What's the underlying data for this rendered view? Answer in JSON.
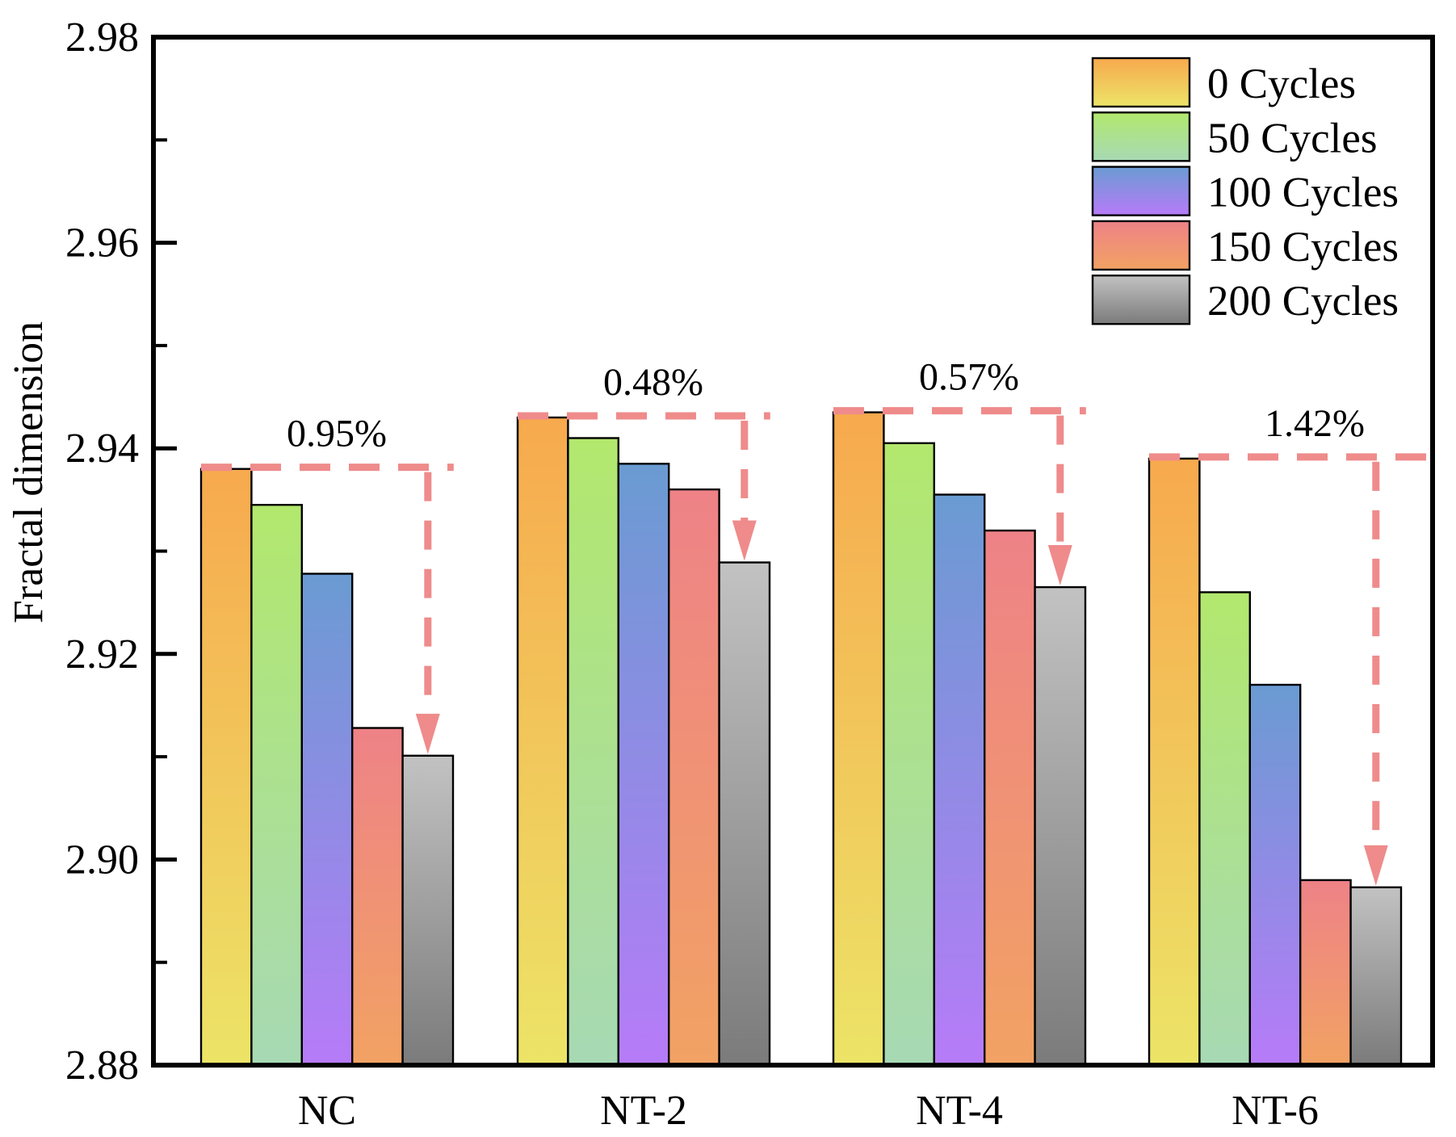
{
  "chart_data": {
    "type": "bar",
    "title": "",
    "xlabel": "",
    "ylabel": "Fractal dimension",
    "categories": [
      "NC",
      "NT-2",
      "NT-4",
      "NT-6"
    ],
    "series": [
      {
        "name": "0 Cycles",
        "color_top": "#f7a94e",
        "color_bottom": "#ece467",
        "values": [
          2.938,
          2.943,
          2.9435,
          2.939
        ]
      },
      {
        "name": "50 Cycles",
        "color_top": "#b2e86d",
        "color_bottom": "#a7d9b4",
        "values": [
          2.9345,
          2.941,
          2.9405,
          2.926
        ]
      },
      {
        "name": "100 Cycles",
        "color_top": "#6a9bd2",
        "color_bottom": "#b77bf8",
        "values": [
          2.9278,
          2.9385,
          2.9355,
          2.917
        ]
      },
      {
        "name": "150 Cycles",
        "color_top": "#ee8287",
        "color_bottom": "#f2a263",
        "values": [
          2.9128,
          2.936,
          2.932,
          2.898
        ]
      },
      {
        "name": "200 Cycles",
        "color_top": "#c2c2c2",
        "color_bottom": "#7b7b7b",
        "values": [
          2.9101,
          2.9289,
          2.9265,
          2.8973
        ]
      }
    ],
    "ylim": [
      2.88,
      2.98
    ],
    "ytick_step": 0.02,
    "ytick_minor_step": 0.01,
    "ytick_labels": [
      "2.98",
      "2.96",
      "2.94",
      "2.92",
      "2.90",
      "2.88"
    ],
    "annotations": [
      {
        "group": "NC",
        "label": "0.95%"
      },
      {
        "group": "NT-2",
        "label": "0.48%"
      },
      {
        "group": "NT-4",
        "label": "0.57%"
      },
      {
        "group": "NT-6",
        "label": "1.42%"
      }
    ],
    "annotation_color": "#ef8b8b",
    "legend_position": "top-right",
    "legend_entries": [
      "0 Cycles",
      "50 Cycles",
      "100 Cycles",
      "150 Cycles",
      "200 Cycles"
    ],
    "grid": false
  }
}
